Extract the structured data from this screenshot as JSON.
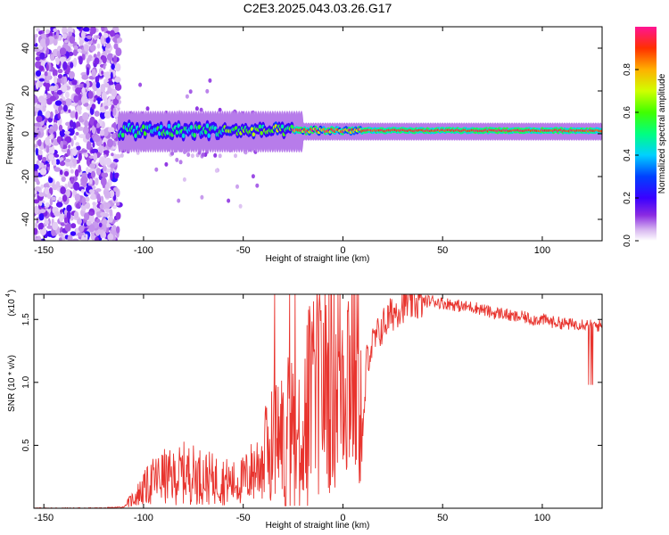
{
  "title": "C2E3.2025.043.03.26.G17",
  "chart_data": [
    {
      "type": "heatmap",
      "xlabel": "Height of straight line (km)",
      "ylabel": "Frequency (Hz)",
      "xlim": [
        -155,
        130
      ],
      "ylim": [
        -50,
        50
      ],
      "xticks": [
        -150,
        -100,
        -50,
        0,
        50,
        100
      ],
      "yticks": [
        -40,
        -20,
        0,
        20,
        40
      ],
      "colorbar": {
        "label": "Normalized spectral amplitude",
        "range": [
          0,
          1
        ],
        "ticks": [
          0.0,
          0.2,
          0.4,
          0.6,
          0.8
        ]
      },
      "description_points": [
        {
          "x": -112,
          "y": 0,
          "v": 0.2
        },
        {
          "x": -90,
          "y": 1,
          "v": 0.45
        },
        {
          "x": -60,
          "y": 0,
          "v": 0.5
        },
        {
          "x": -30,
          "y": 2,
          "v": 0.6
        },
        {
          "x": -20,
          "y": 2,
          "v": 0.95
        },
        {
          "x": 0,
          "y": 1,
          "v": 0.9
        },
        {
          "x": 50,
          "y": 1,
          "v": 0.95
        },
        {
          "x": 100,
          "y": 1,
          "v": 0.95
        },
        {
          "x": 125,
          "y": 1,
          "v": 0.9
        }
      ]
    },
    {
      "type": "line",
      "xlabel": "Height of straight line (km)",
      "ylabel": "SNR (10 * v/v)",
      "y_multiplier_label": "(x10",
      "y_multiplier_exp": "4",
      "xlim": [
        -155,
        130
      ],
      "ylim": [
        0,
        1.7
      ],
      "xticks": [
        -150,
        -100,
        -50,
        0,
        50,
        100
      ],
      "yticks": [
        0.5,
        1.0,
        1.5
      ],
      "series": [
        {
          "color": "#e8342e",
          "x": [
            -155,
            -140,
            -120,
            -110,
            -105,
            -100,
            -95,
            -90,
            -85,
            -80,
            -75,
            -70,
            -65,
            -60,
            -55,
            -50,
            -45,
            -40,
            -35,
            -30,
            -26,
            -22,
            -18,
            -14,
            -10,
            -5,
            0,
            5,
            8,
            10,
            12,
            15,
            20,
            25,
            30,
            35,
            40,
            45,
            50,
            55,
            60,
            65,
            70,
            75,
            80,
            85,
            90,
            95,
            100,
            105,
            110,
            115,
            120,
            125,
            128,
            130
          ],
          "y": [
            0.0,
            0.0,
            0.0,
            0.01,
            0.08,
            0.15,
            0.22,
            0.25,
            0.24,
            0.28,
            0.27,
            0.25,
            0.23,
            0.22,
            0.2,
            0.22,
            0.3,
            0.4,
            0.55,
            0.6,
            0.7,
            0.55,
            0.85,
            0.9,
            1.0,
            1.05,
            1.15,
            1.2,
            1.1,
            0.5,
            1.2,
            1.3,
            1.45,
            1.55,
            1.62,
            1.63,
            1.64,
            1.65,
            1.63,
            1.62,
            1.6,
            1.6,
            1.58,
            1.55,
            1.55,
            1.52,
            1.52,
            1.5,
            1.5,
            1.48,
            1.47,
            1.46,
            1.47,
            1.45,
            1.45,
            1.45
          ]
        }
      ]
    }
  ]
}
